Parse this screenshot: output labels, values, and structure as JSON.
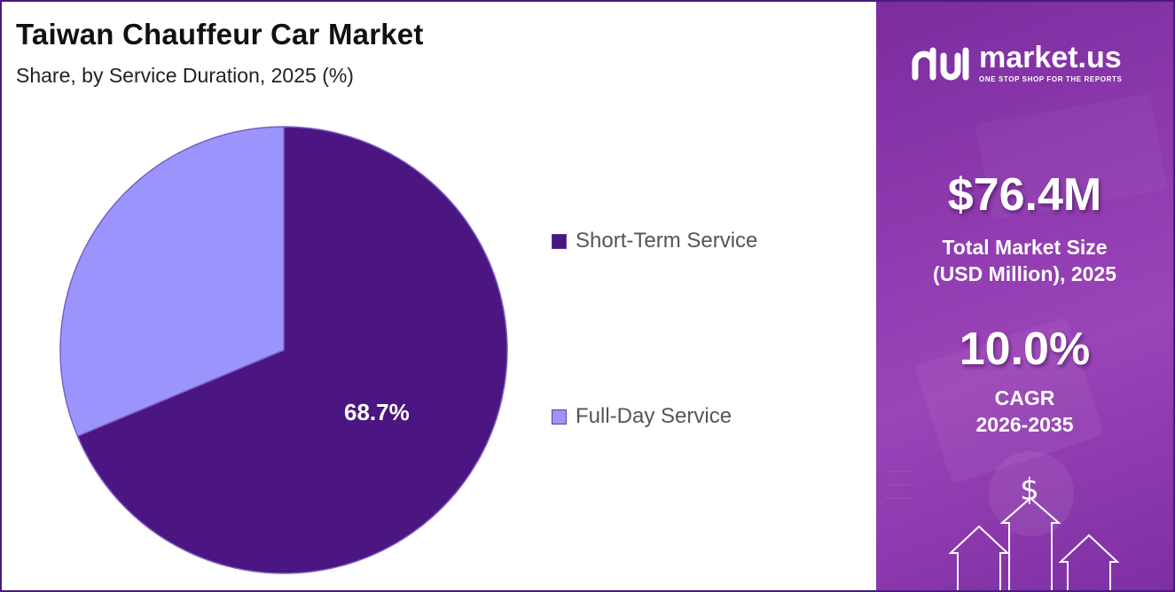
{
  "header": {
    "title": "Taiwan Chauffeur Car Market",
    "subtitle": "Share, by Service Duration, 2025 (%)"
  },
  "chart_data": {
    "type": "pie",
    "title": "Taiwan Chauffeur Car Market",
    "subtitle": "Share, by Service Duration, 2025 (%)",
    "categories": [
      "Short-Term Service",
      "Full-Day Service"
    ],
    "values": [
      68.7,
      31.3
    ],
    "data_labels": [
      "68.7%",
      ""
    ],
    "colors": [
      "#4b1681",
      "#9b94fd"
    ],
    "legend_position": "right"
  },
  "legend": {
    "items": [
      {
        "label": "Short-Term Service",
        "color": "#4b1681"
      },
      {
        "label": "Full-Day Service",
        "color": "#9b94fd"
      }
    ]
  },
  "side_panel": {
    "brand_name": "market.us",
    "brand_tagline": "ONE STOP SHOP FOR THE REPORTS",
    "market_size_value": "$76.4M",
    "market_size_label_line1": "Total Market Size",
    "market_size_label_line2": "(USD Million), 2025",
    "cagr_value": "10.0%",
    "cagr_label_line1": "CAGR",
    "cagr_label_line2": "2026-2035",
    "currency_symbol": "$"
  }
}
